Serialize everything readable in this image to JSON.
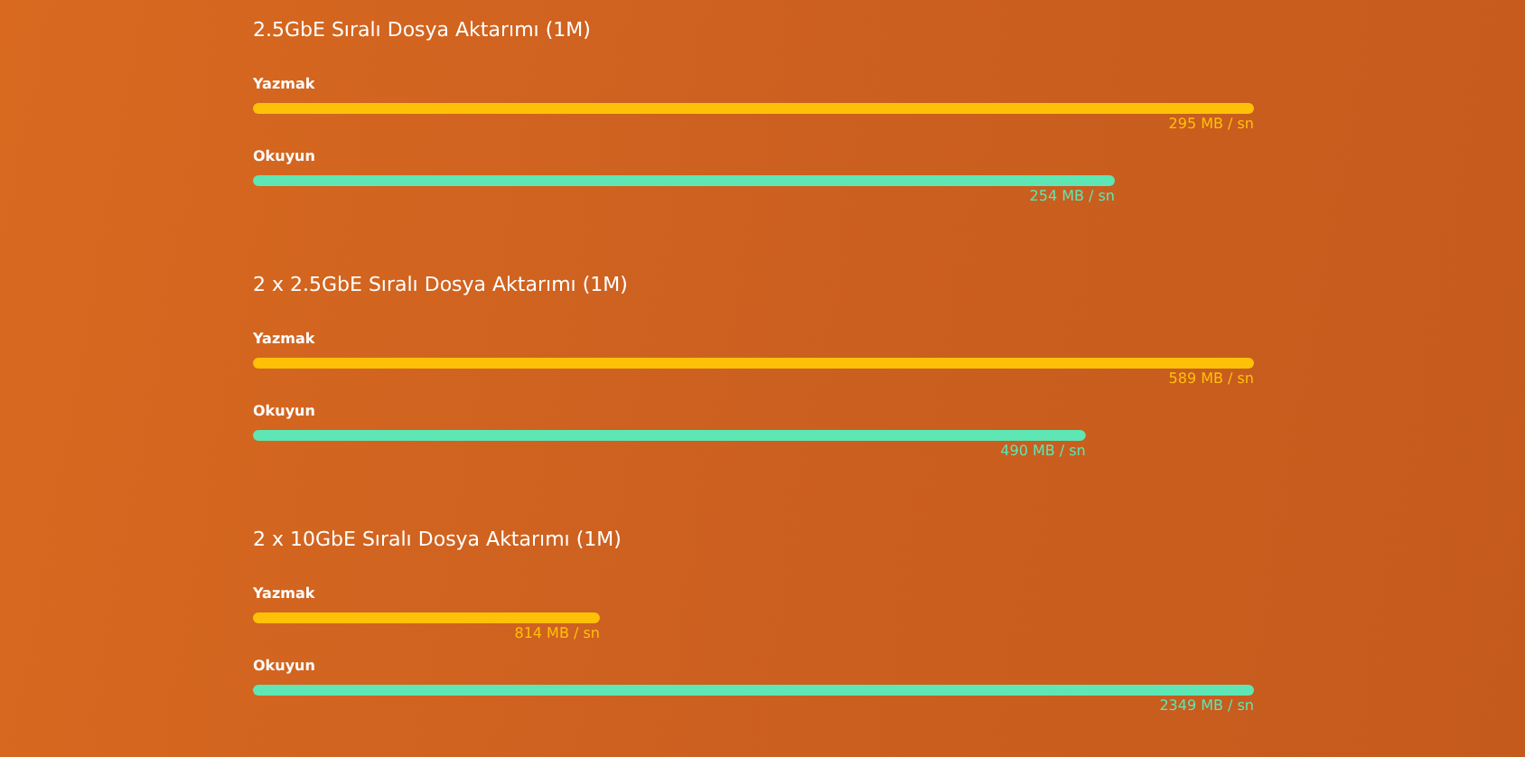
{
  "chart_data": [
    {
      "type": "bar",
      "orientation": "horizontal",
      "title": "2.5GbE Sıralı Dosya Aktarımı (1M)",
      "categories": [
        "Yazmak",
        "Okuyun"
      ],
      "values": [
        295,
        254
      ],
      "colors": [
        "#ffc107",
        "#5ee6b4"
      ],
      "value_labels": [
        "295 MB / sn",
        "254 MB / sn"
      ],
      "grid": false,
      "legend": false
    },
    {
      "type": "bar",
      "orientation": "horizontal",
      "title": "2 x 2.5GbE Sıralı Dosya Aktarımı (1M)",
      "categories": [
        "Yazmak",
        "Okuyun"
      ],
      "values": [
        589,
        490
      ],
      "colors": [
        "#ffc107",
        "#5ee6b4"
      ],
      "value_labels": [
        "589 MB / sn",
        "490 MB / sn"
      ],
      "grid": false,
      "legend": false
    },
    {
      "type": "bar",
      "orientation": "horizontal",
      "title": "2 x 10GbE Sıralı Dosya Aktarımı (1M)",
      "categories": [
        "Yazmak",
        "Okuyun"
      ],
      "values": [
        814,
        2349
      ],
      "colors": [
        "#ffc107",
        "#5ee6b4"
      ],
      "value_labels": [
        "814 MB / sn",
        "2349 MB / sn"
      ],
      "grid": false,
      "legend": false
    }
  ]
}
